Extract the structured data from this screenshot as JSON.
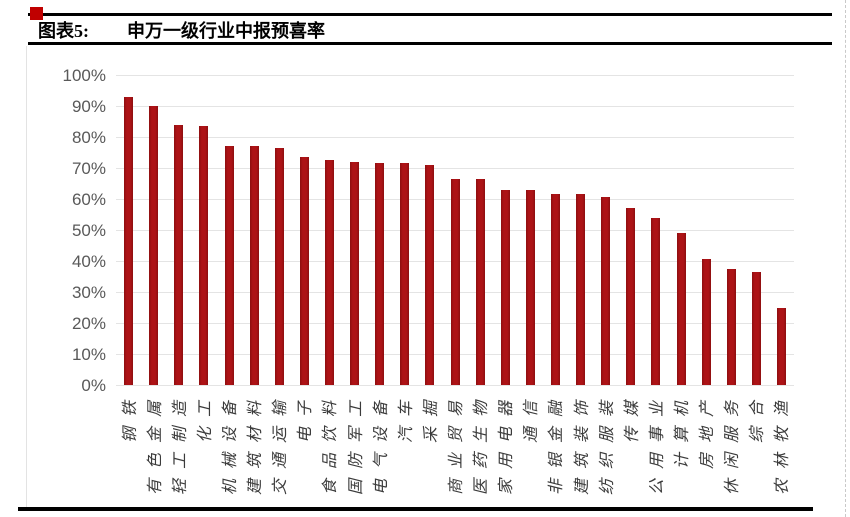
{
  "page": {
    "figure_label": "图表5:",
    "figure_title": "申万一级行业中报预喜率"
  },
  "colors": {
    "bar": "#a31114",
    "bullet": "#c00000",
    "gridline": "#e4e4e4",
    "ytick_text": "#595959",
    "category_text": "#3b3b3b",
    "rule": "#000000"
  },
  "chart_data": {
    "type": "bar",
    "title": "申万一级行业中报预喜率",
    "categories": [
      "钢铁",
      "有色金属",
      "轻工制造",
      "化工",
      "机械设备",
      "建筑材料",
      "交通运输",
      "电子",
      "食品饮料",
      "国防军工",
      "电气设备",
      "汽车",
      "采掘",
      "商业贸易",
      "医药生物",
      "家用电器",
      "通信",
      "非银金融",
      "建筑装饰",
      "纺织服装",
      "传媒",
      "公用事业",
      "计算机",
      "房地产",
      "休闲服务",
      "综合",
      "农林牧渔"
    ],
    "values": [
      93,
      90,
      84,
      83.5,
      77,
      77,
      76.5,
      73.5,
      72.5,
      72,
      71.5,
      71.5,
      71,
      66.5,
      66.5,
      63,
      63,
      61.5,
      61.5,
      60.5,
      57,
      54,
      49,
      40.5,
      37.5,
      36.5,
      25
    ],
    "unit": "%",
    "xlabel": "",
    "ylabel": "",
    "ylim": [
      0,
      100
    ],
    "ytick_step": 10,
    "ytick_labels": [
      "0%",
      "10%",
      "20%",
      "30%",
      "40%",
      "50%",
      "60%",
      "70%",
      "80%",
      "90%",
      "100%"
    ],
    "grid": "horizontal",
    "legend_position": "none",
    "bar_color": "#a31114"
  }
}
